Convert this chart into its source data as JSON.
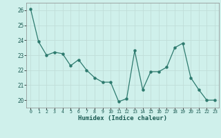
{
  "x": [
    0,
    1,
    2,
    3,
    4,
    5,
    6,
    7,
    8,
    9,
    10,
    11,
    12,
    13,
    14,
    15,
    16,
    17,
    18,
    19,
    20,
    21,
    22,
    23
  ],
  "y": [
    26.1,
    23.9,
    23.0,
    23.2,
    23.1,
    22.3,
    22.7,
    22.0,
    21.5,
    21.2,
    21.2,
    19.9,
    20.1,
    23.3,
    20.7,
    21.9,
    21.9,
    22.2,
    23.5,
    23.8,
    21.5,
    20.7,
    20.0,
    20.0
  ],
  "line_color": "#2d7a6e",
  "marker_color": "#2d7a6e",
  "bg_color": "#cff0eb",
  "grid_color": "#c0ddd8",
  "xlabel": "Humidex (Indice chaleur)",
  "ylim": [
    19.5,
    26.5
  ],
  "xlim": [
    -0.5,
    23.5
  ],
  "yticks": [
    20,
    21,
    22,
    23,
    24,
    25,
    26
  ],
  "xticks": [
    0,
    1,
    2,
    3,
    4,
    5,
    6,
    7,
    8,
    9,
    10,
    11,
    12,
    13,
    14,
    15,
    16,
    17,
    18,
    19,
    20,
    21,
    22,
    23
  ]
}
